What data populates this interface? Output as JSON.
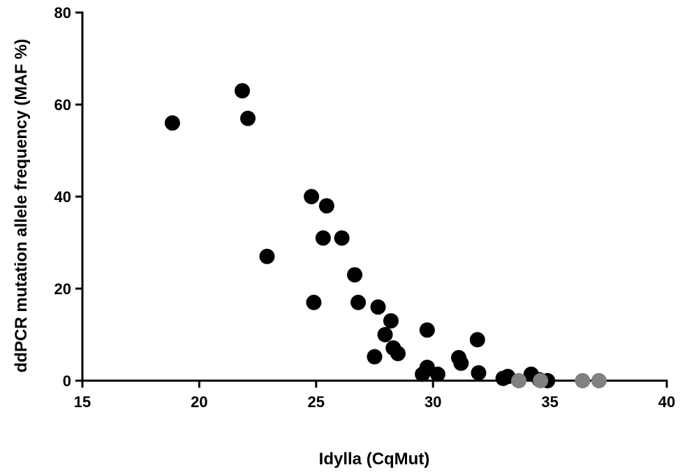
{
  "chart_data": {
    "type": "scatter",
    "x_label": "Idylla (CqMut)",
    "y_label": "ddPCR mutation allele frequency (MAF %)",
    "xlim": [
      15,
      40
    ],
    "xticks": [
      15,
      20,
      25,
      30,
      35,
      40
    ],
    "ylim": [
      0,
      80
    ],
    "yticks": [
      0,
      20,
      40,
      60,
      80
    ],
    "series": [
      {
        "color": "#000000",
        "x": [
          18.85,
          21.84,
          22.08,
          22.9,
          24.8,
          25.45,
          25.3,
          24.9,
          26.1,
          26.65,
          26.8,
          27.65,
          27.5,
          27.95,
          28.2,
          28.3,
          28.5,
          29.75,
          29.75,
          29.55,
          30.2,
          31.1,
          31.2,
          31.9,
          31.95,
          33.0,
          33.2,
          34.2,
          34.55,
          34.9
        ],
        "values": [
          56,
          63,
          57,
          27,
          40,
          38,
          31,
          17,
          31,
          23,
          17,
          16,
          5.2,
          10,
          13,
          7.1,
          5.9,
          11,
          2.9,
          1.4,
          1.4,
          5,
          3.8,
          8.9,
          1.7,
          0.5,
          0.9,
          1.4,
          0.2,
          0
        ]
      },
      {
        "color": "#808080",
        "x": [
          33.67,
          34.6,
          36.4,
          37.1
        ],
        "values": [
          0,
          0,
          0,
          0
        ]
      }
    ]
  }
}
